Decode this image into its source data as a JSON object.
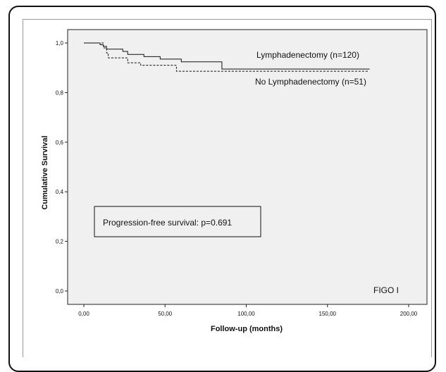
{
  "chart_data": {
    "type": "line",
    "subtype": "kaplan-meier step",
    "xlabel": "Follow-up (months)",
    "ylabel": "Cumulative Survival",
    "xlim": [
      0,
      200
    ],
    "ylim": [
      0,
      1
    ],
    "x_ticks": [
      "0,00",
      "50,00",
      "100,00",
      "150,00",
      "200,00"
    ],
    "x_tick_values": [
      0,
      50,
      100,
      150,
      200
    ],
    "y_ticks": [
      "0,0",
      "0,2",
      "0,4",
      "0,6",
      "0,8",
      "1,0"
    ],
    "y_tick_values": [
      0,
      0.2,
      0.4,
      0.6,
      0.8,
      1.0
    ],
    "grid": false,
    "background_color": "#f0f0f0",
    "series": [
      {
        "name": "Lymphadenectomy (n=120)",
        "line_style": "solid",
        "x": [
          0,
          10,
          12,
          14,
          24,
          27,
          37,
          47,
          60,
          85,
          176
        ],
        "y": [
          1.0,
          0.993,
          0.986,
          0.975,
          0.966,
          0.954,
          0.945,
          0.935,
          0.924,
          0.895,
          0.895
        ]
      },
      {
        "name": "No Lymphadenectomy (n=51)",
        "line_style": "dashed",
        "x": [
          0,
          12,
          14,
          15,
          27,
          35,
          57,
          175
        ],
        "y": [
          1.0,
          0.98,
          0.96,
          0.94,
          0.92,
          0.91,
          0.886,
          0.886
        ]
      }
    ],
    "annotations": {
      "box_text": "Progression-free survival: p=0.691",
      "corner_label": "FIGO I"
    }
  }
}
